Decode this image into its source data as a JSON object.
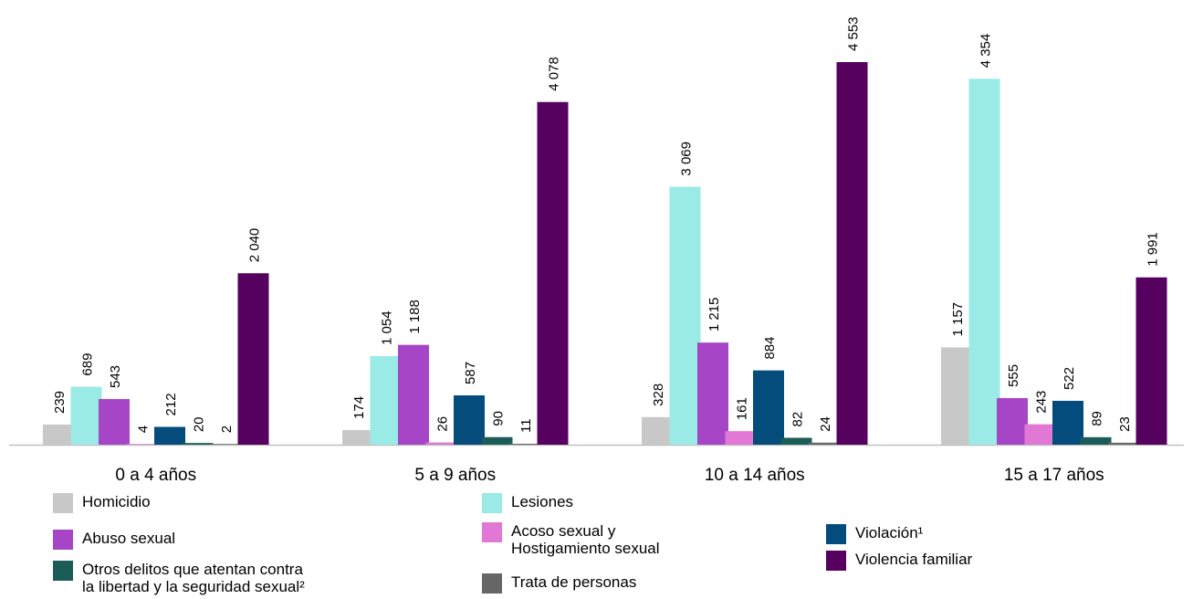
{
  "chart_data": {
    "type": "bar",
    "title": "",
    "xlabel": "",
    "ylabel": "",
    "ylim": [
      0,
      4800
    ],
    "grid": false,
    "legend_position": "bottom",
    "categories": [
      "0 a 4 años",
      "5 a 9 años",
      "10 a 14 años",
      "15 a 17 años"
    ],
    "series": [
      {
        "name": "Homicidio",
        "color": "#c8c8c8",
        "values": [
          239,
          174,
          328,
          1157
        ],
        "labels": [
          "239",
          "174",
          "328",
          "1 157"
        ]
      },
      {
        "name": "Lesiones",
        "color": "#9aeae6",
        "values": [
          689,
          1054,
          3069,
          4354
        ],
        "labels": [
          "689",
          "1 054",
          "3 069",
          "4 354"
        ]
      },
      {
        "name": "Abuso sexual",
        "color": "#a646c6",
        "values": [
          543,
          1188,
          1215,
          555
        ],
        "labels": [
          "543",
          "1 188",
          "1 215",
          "555"
        ]
      },
      {
        "name": "Acoso sexual y\nHostigamiento sexual",
        "color": "#e278d6",
        "values": [
          4,
          26,
          161,
          243
        ],
        "labels": [
          "4",
          "26",
          "161",
          "243"
        ]
      },
      {
        "name": "Violación¹",
        "color": "#044c7c",
        "values": [
          212,
          587,
          884,
          522
        ],
        "labels": [
          "212",
          "587",
          "884",
          "522"
        ]
      },
      {
        "name": "Otros delitos que atentan contra\nla libertad y la seguridad sexual²",
        "color": "#1c5c58",
        "values": [
          20,
          90,
          82,
          89
        ],
        "labels": [
          "20",
          "90",
          "82",
          "89"
        ]
      },
      {
        "name": "Trata de personas",
        "color": "#666666",
        "values": [
          2,
          11,
          24,
          23
        ],
        "labels": [
          "2",
          "11",
          "24",
          "23"
        ]
      },
      {
        "name": "Violencia familiar",
        "color": "#560060",
        "values": [
          2040,
          4078,
          4553,
          1991
        ],
        "labels": [
          "2 040",
          "4 078",
          "4 553",
          "1 991"
        ]
      }
    ]
  }
}
